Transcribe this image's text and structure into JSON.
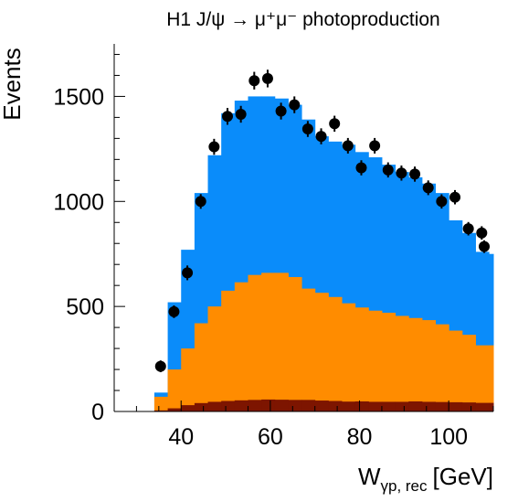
{
  "chart_data": {
    "type": "bar",
    "title": "H1 J/ψ → μ⁺μ⁻ photoproduction",
    "xlabel": "W",
    "xlabel_sub": "γp, rec",
    "xlabel_unit": "[GeV]",
    "ylabel": "Events",
    "xlim": [
      25,
      110
    ],
    "ylim": [
      0,
      1750
    ],
    "x_ticks": [
      40,
      60,
      80,
      100
    ],
    "y_ticks": [
      0,
      500,
      1000,
      1500
    ],
    "bin_edges": [
      34.0,
      37.0,
      40.0,
      43.0,
      46.0,
      49.0,
      52.0,
      55.0,
      58.0,
      61.0,
      64.0,
      67.0,
      70.0,
      73.0,
      76.0,
      79.0,
      82.0,
      85.0,
      88.0,
      91.0,
      94.0,
      97.0,
      100.0,
      103.0,
      106.0,
      109.0,
      110.0
    ],
    "stack_colors": {
      "total": "#0A8CFA",
      "middle": "#FF8C00",
      "bottom": "#7D1500",
      "data": "#000000"
    },
    "series": [
      {
        "values": [
          90,
          520,
          770,
          1040,
          1220,
          1420,
          1480,
          1500,
          1500,
          1490,
          1460,
          1390,
          1310,
          1285,
          1270,
          1235,
          1210,
          1175,
          1140,
          1115,
          1085,
          1040,
          910,
          850,
          760,
          750
        ]
      },
      {
        "values": [
          70,
          200,
          300,
          420,
          500,
          575,
          615,
          650,
          660,
          660,
          640,
          585,
          565,
          545,
          515,
          495,
          480,
          470,
          455,
          445,
          435,
          415,
          385,
          365,
          315,
          315
        ]
      },
      {
        "values": [
          5,
          15,
          30,
          40,
          46,
          50,
          53,
          55,
          57,
          56,
          55,
          55,
          52,
          50,
          47,
          48,
          46,
          46,
          46,
          48,
          46,
          45,
          44,
          43,
          41,
          41
        ]
      },
      {
        "x": [
          35.4,
          38.4,
          41.4,
          44.4,
          47.4,
          50.4,
          53.4,
          56.4,
          59.4,
          62.4,
          65.4,
          68.4,
          71.4,
          74.4,
          77.4,
          80.4,
          83.4,
          86.4,
          89.4,
          92.4,
          95.4,
          98.4,
          101.4,
          104.4,
          107.4,
          110.4
        ],
        "values": [
          215,
          475,
          660,
          1000,
          1260,
          1405,
          1415,
          1575,
          1585,
          1430,
          1460,
          1345,
          1310,
          1370,
          1265,
          1160,
          1265,
          1150,
          1135,
          1130,
          1065,
          1000,
          1020,
          870,
          850,
          785
        ],
        "errors": [
          28,
          30,
          35,
          35,
          38,
          40,
          40,
          42,
          42,
          40,
          40,
          38,
          38,
          38,
          37,
          36,
          37,
          36,
          36,
          36,
          35,
          34,
          34,
          32,
          32,
          30
        ]
      }
    ]
  }
}
